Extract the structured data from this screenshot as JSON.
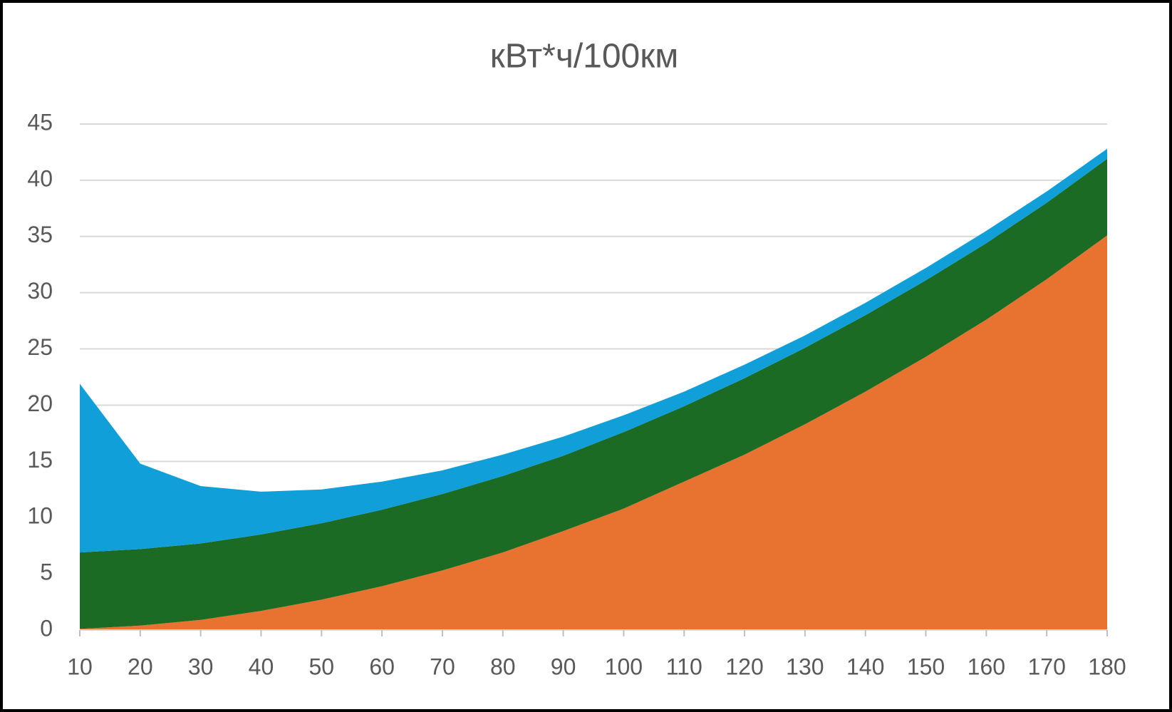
{
  "chart_data": {
    "type": "stacked-area",
    "title": "кВт*ч/100км",
    "x": [
      10,
      20,
      30,
      40,
      50,
      60,
      70,
      80,
      90,
      100,
      110,
      120,
      130,
      140,
      150,
      160,
      170,
      180
    ],
    "xlim": [
      10,
      180
    ],
    "xticks": [
      10,
      20,
      30,
      40,
      50,
      60,
      70,
      80,
      90,
      100,
      110,
      120,
      130,
      140,
      150,
      160,
      170,
      180
    ],
    "series": [
      {
        "color": "#e8722f",
        "values": [
          0.1,
          0.4,
          0.9,
          1.7,
          2.7,
          3.9,
          5.3,
          6.9,
          8.8,
          10.8,
          13.2,
          15.6,
          18.3,
          21.2,
          24.3,
          27.6,
          31.2,
          35.1
        ]
      },
      {
        "color": "#1b6b24",
        "values": [
          6.8,
          6.8,
          6.8,
          6.8,
          6.8,
          6.8,
          6.8,
          6.8,
          6.7,
          6.8,
          6.7,
          6.8,
          6.8,
          6.8,
          6.8,
          6.8,
          6.8,
          6.8
        ]
      },
      {
        "color": "#109fd8",
        "values": [
          15.0,
          7.6,
          5.1,
          3.8,
          3.0,
          2.5,
          2.1,
          1.9,
          1.7,
          1.5,
          1.3,
          1.2,
          1.1,
          1.1,
          1.1,
          1.1,
          1.0,
          0.9
        ]
      }
    ],
    "ylim": [
      0,
      45
    ],
    "yticks": [
      0,
      5,
      10,
      15,
      20,
      25,
      30,
      35,
      40,
      45
    ],
    "grid": true
  }
}
